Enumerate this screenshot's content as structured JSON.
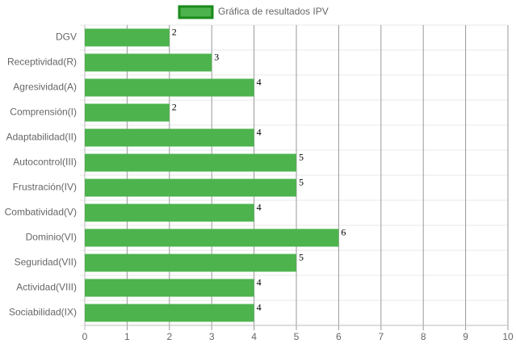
{
  "chart_data": {
    "type": "bar",
    "orientation": "horizontal",
    "categories": [
      "DGV",
      "Receptividad(R)",
      "Agresividad(A)",
      "Comprensión(I)",
      "Adaptabilidad(II)",
      "Autocontrol(III)",
      "Frustración(IV)",
      "Combatividad(V)",
      "Dominio(VI)",
      "Seguridad(VII)",
      "Actividad(VIII)",
      "Sociabilidad(IX)"
    ],
    "series": [
      {
        "name": "Gráfica de resultados IPV",
        "color": "#4db34d",
        "border_color": "#1a8a1a",
        "values": [
          2,
          3,
          4,
          2,
          4,
          5,
          5,
          4,
          6,
          5,
          4,
          4
        ]
      }
    ],
    "xlim": [
      0,
      10
    ],
    "xticks": [
      0,
      1,
      2,
      3,
      4,
      5,
      6,
      7,
      8,
      9,
      10
    ],
    "grid": true,
    "legend": "top"
  }
}
